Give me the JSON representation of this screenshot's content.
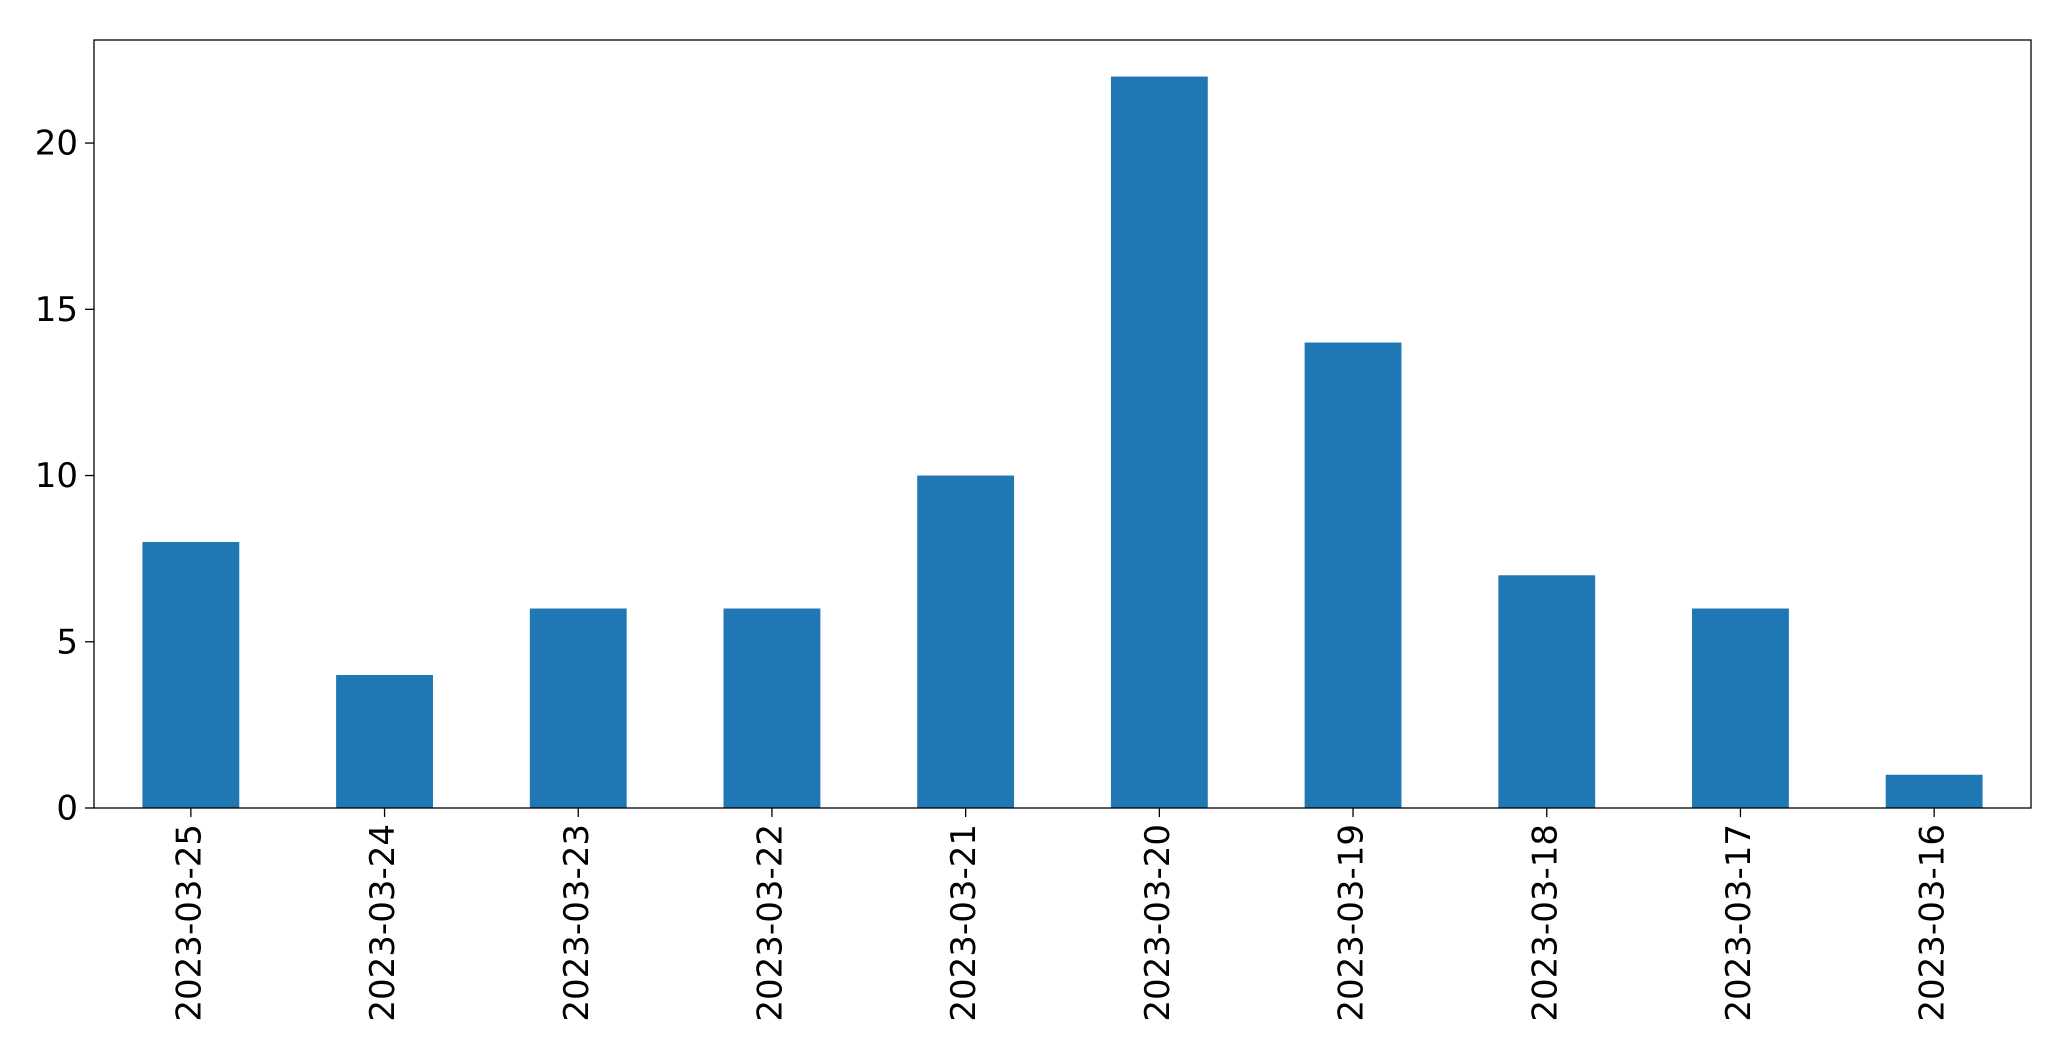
{
  "chart_data": {
    "type": "bar",
    "categories": [
      "2023-03-25",
      "2023-03-24",
      "2023-03-23",
      "2023-03-22",
      "2023-03-21",
      "2023-03-20",
      "2023-03-19",
      "2023-03-18",
      "2023-03-17",
      "2023-03-16"
    ],
    "values": [
      8,
      4,
      6,
      6,
      10,
      22,
      14,
      7,
      6,
      1
    ],
    "color": "#1f77b4",
    "ylim": [
      0,
      23.1
    ],
    "yticks": [
      0,
      5,
      10,
      15,
      20
    ],
    "grid": false
  }
}
